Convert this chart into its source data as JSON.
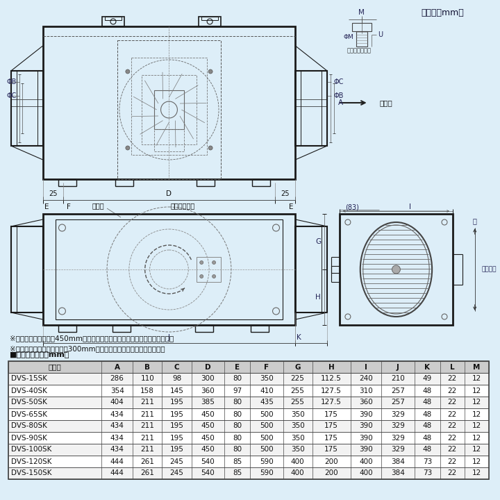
{
  "bg_color": "#ddeef8",
  "unit_label": "（単位：mm）",
  "note1": "※保守のために天井に450mm角以上の点検口を点検蓋側に設けてください。",
  "note2": "※製品本体と点検口の間には300mmの点検スペースを設けてください。",
  "table_title": "■寸法表（単位：mm）",
  "table_headers": [
    "形　名",
    "A",
    "B",
    "C",
    "D",
    "E",
    "F",
    "G",
    "H",
    "I",
    "J",
    "K",
    "L",
    "M"
  ],
  "table_rows": [
    [
      "DVS-15SK",
      "286",
      "110",
      "98",
      "300",
      "80",
      "350",
      "225",
      "112.5",
      "240",
      "210",
      "49",
      "22",
      "12"
    ],
    [
      "DVS-40SK",
      "354",
      "158",
      "145",
      "360",
      "97",
      "410",
      "255",
      "127.5",
      "310",
      "257",
      "48",
      "22",
      "12"
    ],
    [
      "DVS-50SK",
      "404",
      "211",
      "195",
      "385",
      "80",
      "435",
      "255",
      "127.5",
      "360",
      "257",
      "48",
      "22",
      "12"
    ],
    [
      "DVS-65SK",
      "434",
      "211",
      "195",
      "450",
      "80",
      "500",
      "350",
      "175",
      "390",
      "329",
      "48",
      "22",
      "12"
    ],
    [
      "DVS-80SK",
      "434",
      "211",
      "195",
      "450",
      "80",
      "500",
      "350",
      "175",
      "390",
      "329",
      "48",
      "22",
      "12"
    ],
    [
      "DVS-90SK",
      "434",
      "211",
      "195",
      "450",
      "80",
      "500",
      "350",
      "175",
      "390",
      "329",
      "48",
      "22",
      "12"
    ],
    [
      "DVS-100SK",
      "434",
      "211",
      "195",
      "450",
      "80",
      "500",
      "350",
      "175",
      "390",
      "329",
      "48",
      "22",
      "12"
    ],
    [
      "DVS-120SK",
      "444",
      "261",
      "245",
      "540",
      "85",
      "590",
      "400",
      "200",
      "400",
      "384",
      "73",
      "22",
      "12"
    ],
    [
      "DVS-150SK",
      "444",
      "261",
      "245",
      "540",
      "85",
      "590",
      "400",
      "200",
      "400",
      "384",
      "73",
      "22",
      "12"
    ]
  ],
  "line_color": "#1a1a1a",
  "dim_color": "#333355",
  "table_border_color": "#444444",
  "header_bg": "#cccccc",
  "text_color": "#111111",
  "wind_label": "風方向",
  "hanger_label": "吹り金具詳細図",
  "tenken_label": "点検蓋",
  "rotation_label": "羽根回転方向",
  "phi_B": "ΦB",
  "phi_C": "ΦC",
  "phi_M": "ΦM",
  "install_label": "設置方向"
}
